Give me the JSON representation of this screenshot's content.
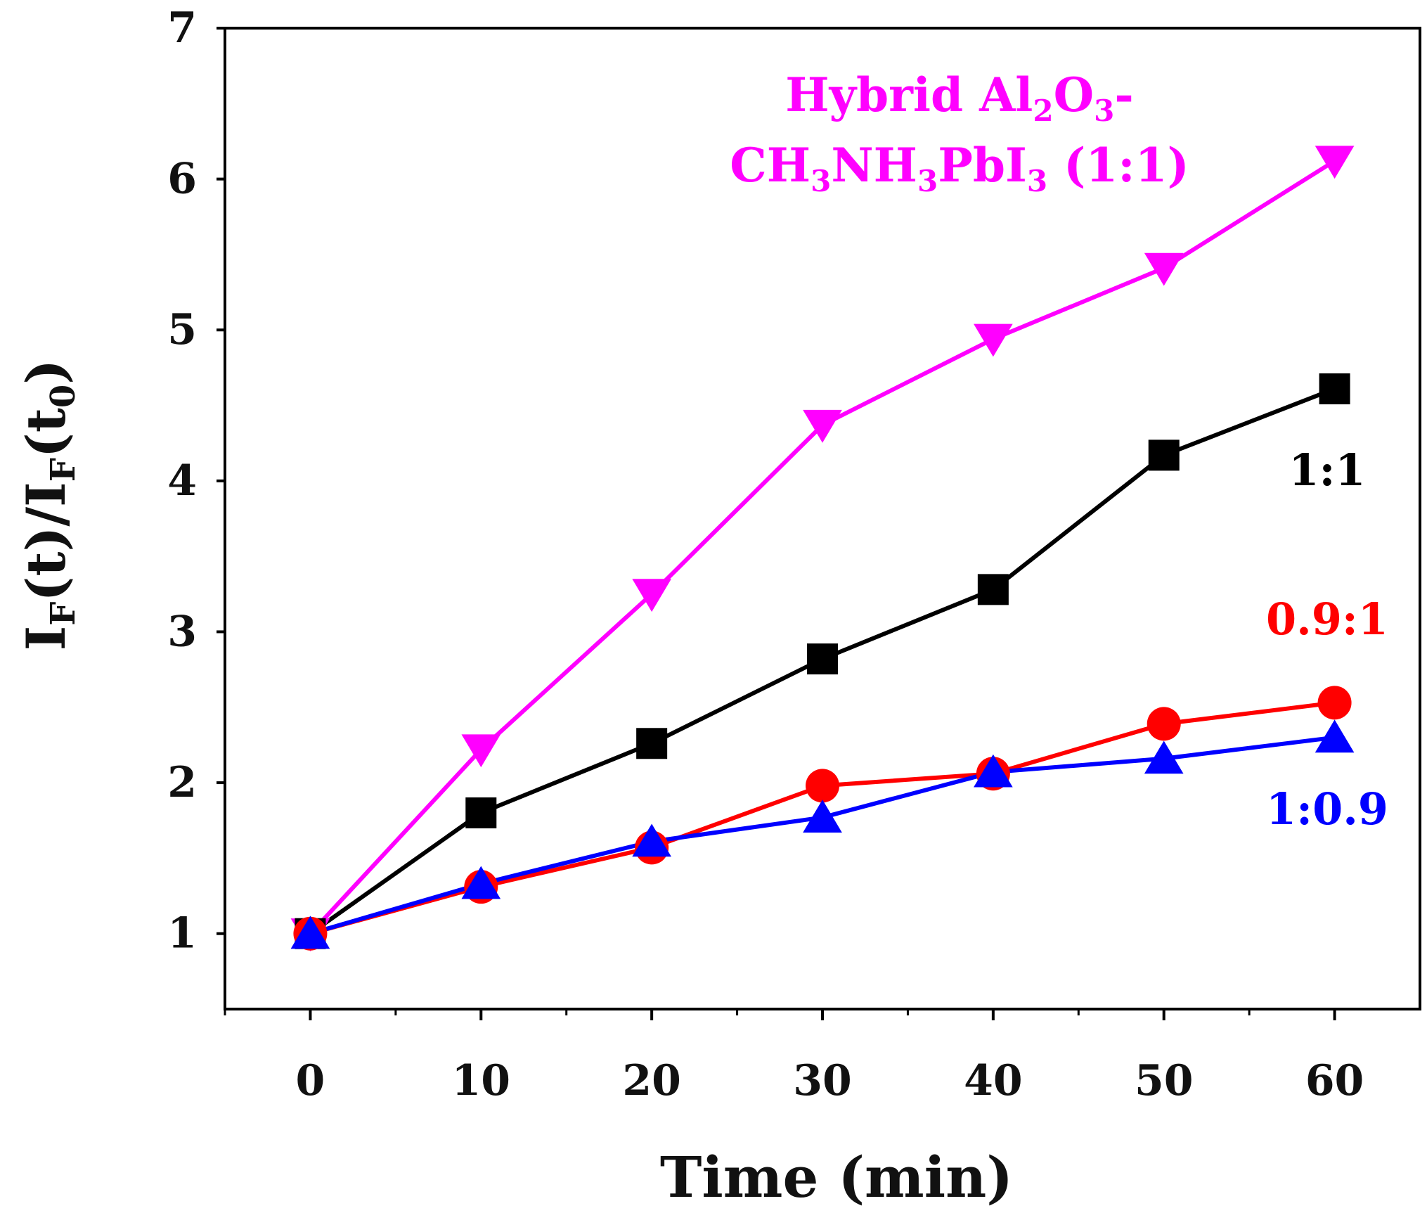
{
  "chart_data": {
    "type": "line",
    "title": "",
    "xlabel": "Time (min)",
    "ylabel": {
      "main1": "I",
      "sub1": "F",
      "main2": "(t)/I",
      "sub2": "F",
      "main3": "(t",
      "sub3": "0",
      "main4": ")"
    },
    "x": [
      0,
      10,
      20,
      30,
      40,
      50,
      60
    ],
    "xlim": [
      -5,
      65
    ],
    "ylim": [
      0.5,
      7.0
    ],
    "xticks": [
      "0",
      "10",
      "20",
      "30",
      "40",
      "50",
      "60"
    ],
    "yticks": [
      "1",
      "2",
      "3",
      "4",
      "5",
      "6",
      "7"
    ],
    "grid": false,
    "series": [
      {
        "name": "Hybrid Al2O3-CH3NH3PbI3 (1:1)",
        "color": "#ff00ff",
        "marker": "triangle-down",
        "values": [
          1.0,
          2.22,
          3.25,
          4.37,
          4.94,
          5.41,
          6.12
        ]
      },
      {
        "name": "1:1",
        "color": "#000000",
        "marker": "square",
        "values": [
          1.0,
          1.8,
          2.26,
          2.82,
          3.28,
          4.17,
          4.61
        ]
      },
      {
        "name": "0.9:1",
        "color": "#ff0000",
        "marker": "circle",
        "values": [
          1.0,
          1.31,
          1.57,
          1.98,
          2.06,
          2.39,
          2.53
        ]
      },
      {
        "name": "1:0.9",
        "color": "#0000ff",
        "marker": "triangle-up",
        "values": [
          1.0,
          1.33,
          1.61,
          1.77,
          2.07,
          2.16,
          2.3
        ]
      }
    ],
    "annotations": {
      "hybrid": {
        "line1_a": "Hybrid Al",
        "line1_sub1": "2",
        "line1_b": "O",
        "line1_sub2": "3",
        "line1_c": "-",
        "line2_a": "CH",
        "line2_sub1": "3",
        "line2_b": "NH",
        "line2_sub2": "3",
        "line2_c": "PbI",
        "line2_sub3": "3",
        "line2_d": " (1:1)"
      },
      "ratio_1_1": "1:1",
      "ratio_09_1": "0.9:1",
      "ratio_1_09": "1:0.9"
    }
  }
}
